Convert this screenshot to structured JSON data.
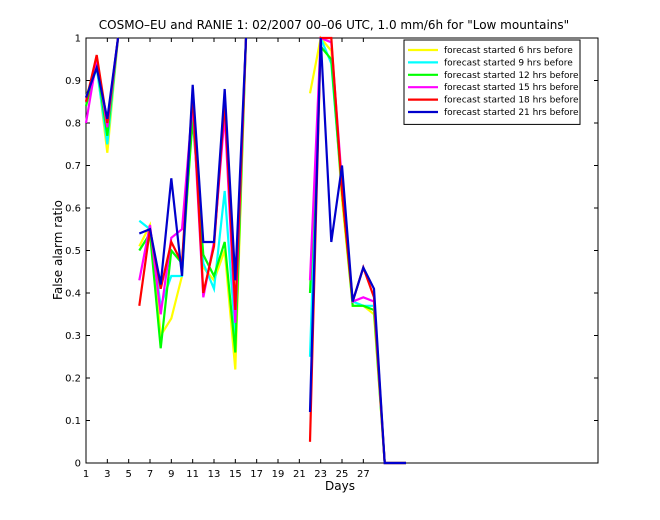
{
  "chart_data": {
    "type": "line",
    "title": "COSMO–EU and RANIE 1: 02/2007 00–06 UTC, 1.0 mm/6h for \"Low mountains\"",
    "xlabel": "Days",
    "ylabel": "False alarm ratio",
    "xlim": [
      1,
      49
    ],
    "ylim": [
      0,
      1
    ],
    "xticks": [
      1,
      3,
      5,
      7,
      9,
      11,
      13,
      15,
      17,
      19,
      21,
      23,
      25,
      27
    ],
    "yticks": [
      0,
      0.1,
      0.2,
      0.3,
      0.4,
      0.5,
      0.6,
      0.7,
      0.8,
      0.9,
      1
    ],
    "legend_position": "top-right",
    "series": [
      {
        "name": "forecast started 6 hrs before",
        "color": "#ffff00",
        "values": [
          [
            1,
            0.86
          ],
          [
            2,
            0.94
          ],
          [
            3,
            0.73
          ],
          [
            4,
            1.0
          ],
          [
            6,
            0.51
          ],
          [
            7,
            0.56
          ],
          [
            8,
            0.3
          ],
          [
            9,
            0.34
          ],
          [
            10,
            0.44
          ],
          [
            11,
            0.83
          ],
          [
            12,
            0.46
          ],
          [
            13,
            0.43
          ],
          [
            14,
            0.5
          ],
          [
            15,
            0.22
          ],
          [
            16,
            1.0
          ],
          [
            22,
            0.87
          ],
          [
            23,
            1.0
          ],
          [
            24,
            0.97
          ],
          [
            25,
            0.62
          ],
          [
            26,
            0.37
          ],
          [
            27,
            0.37
          ],
          [
            28,
            0.35
          ],
          [
            29,
            0.0
          ],
          [
            31,
            0.0
          ]
        ]
      },
      {
        "name": "forecast started 9 hrs before",
        "color": "#00ffff",
        "values": [
          [
            1,
            0.85
          ],
          [
            2,
            0.93
          ],
          [
            3,
            0.75
          ],
          [
            4,
            1.0
          ],
          [
            6,
            0.57
          ],
          [
            7,
            0.55
          ],
          [
            8,
            0.37
          ],
          [
            9,
            0.44
          ],
          [
            10,
            0.44
          ],
          [
            11,
            0.85
          ],
          [
            12,
            0.47
          ],
          [
            13,
            0.41
          ],
          [
            14,
            0.64
          ],
          [
            15,
            0.3
          ],
          [
            16,
            1.0
          ],
          [
            22,
            0.25
          ],
          [
            23,
            1.0
          ],
          [
            24,
            0.94
          ],
          [
            25,
            0.64
          ],
          [
            26,
            0.38
          ],
          [
            27,
            0.37
          ],
          [
            28,
            0.37
          ],
          [
            29,
            0.0
          ],
          [
            31,
            0.0
          ]
        ]
      },
      {
        "name": "forecast started 12 hrs before",
        "color": "#00ff00",
        "values": [
          [
            1,
            0.84
          ],
          [
            2,
            0.94
          ],
          [
            3,
            0.77
          ],
          [
            4,
            1.0
          ],
          [
            6,
            0.5
          ],
          [
            7,
            0.54
          ],
          [
            8,
            0.27
          ],
          [
            9,
            0.5
          ],
          [
            10,
            0.47
          ],
          [
            11,
            0.81
          ],
          [
            12,
            0.49
          ],
          [
            13,
            0.44
          ],
          [
            14,
            0.52
          ],
          [
            15,
            0.26
          ],
          [
            16,
            1.0
          ],
          [
            22,
            0.4
          ],
          [
            23,
            0.98
          ],
          [
            24,
            0.95
          ],
          [
            25,
            0.64
          ],
          [
            26,
            0.37
          ],
          [
            27,
            0.37
          ],
          [
            28,
            0.36
          ],
          [
            29,
            0.0
          ],
          [
            31,
            0.0
          ]
        ]
      },
      {
        "name": "forecast started 15 hrs before",
        "color": "#ff00ff",
        "values": [
          [
            1,
            0.8
          ],
          [
            2,
            0.95
          ],
          [
            3,
            0.79
          ],
          [
            4,
            1.0
          ],
          [
            6,
            0.43
          ],
          [
            7,
            0.56
          ],
          [
            8,
            0.35
          ],
          [
            9,
            0.53
          ],
          [
            10,
            0.55
          ],
          [
            11,
            0.85
          ],
          [
            12,
            0.39
          ],
          [
            13,
            0.52
          ],
          [
            14,
            0.82
          ],
          [
            15,
            0.33
          ],
          [
            16,
            1.0
          ],
          [
            22,
            0.43
          ],
          [
            23,
            1.0
          ],
          [
            24,
            0.99
          ],
          [
            25,
            0.66
          ],
          [
            26,
            0.38
          ],
          [
            27,
            0.39
          ],
          [
            28,
            0.38
          ],
          [
            29,
            0.0
          ],
          [
            31,
            0.0
          ]
        ]
      },
      {
        "name": "forecast started 18 hrs before",
        "color": "#ff0000",
        "values": [
          [
            1,
            0.85
          ],
          [
            2,
            0.96
          ],
          [
            3,
            0.8
          ],
          [
            4,
            1.0
          ],
          [
            6,
            0.37
          ],
          [
            7,
            0.55
          ],
          [
            8,
            0.41
          ],
          [
            9,
            0.52
          ],
          [
            10,
            0.47
          ],
          [
            11,
            0.87
          ],
          [
            12,
            0.4
          ],
          [
            13,
            0.51
          ],
          [
            14,
            0.85
          ],
          [
            15,
            0.36
          ],
          [
            16,
            1.0
          ],
          [
            22,
            0.05
          ],
          [
            23,
            1.0
          ],
          [
            24,
            1.0
          ],
          [
            25,
            0.64
          ],
          [
            26,
            0.38
          ],
          [
            27,
            0.46
          ],
          [
            28,
            0.39
          ],
          [
            29,
            0.0
          ],
          [
            31,
            0.0
          ]
        ]
      },
      {
        "name": "forecast started 21 hrs before",
        "color": "#0000cc",
        "values": [
          [
            1,
            0.86
          ],
          [
            2,
            0.93
          ],
          [
            3,
            0.81
          ],
          [
            4,
            1.0
          ],
          [
            6,
            0.54
          ],
          [
            7,
            0.55
          ],
          [
            8,
            0.42
          ],
          [
            9,
            0.67
          ],
          [
            10,
            0.44
          ],
          [
            11,
            0.89
          ],
          [
            12,
            0.52
          ],
          [
            13,
            0.52
          ],
          [
            14,
            0.88
          ],
          [
            15,
            0.43
          ],
          [
            16,
            1.0
          ],
          [
            22,
            0.12
          ],
          [
            23,
            1.0
          ],
          [
            24,
            0.52
          ],
          [
            25,
            0.7
          ],
          [
            26,
            0.38
          ],
          [
            27,
            0.46
          ],
          [
            28,
            0.41
          ],
          [
            29,
            0.0
          ],
          [
            31,
            0.0
          ]
        ]
      }
    ]
  }
}
